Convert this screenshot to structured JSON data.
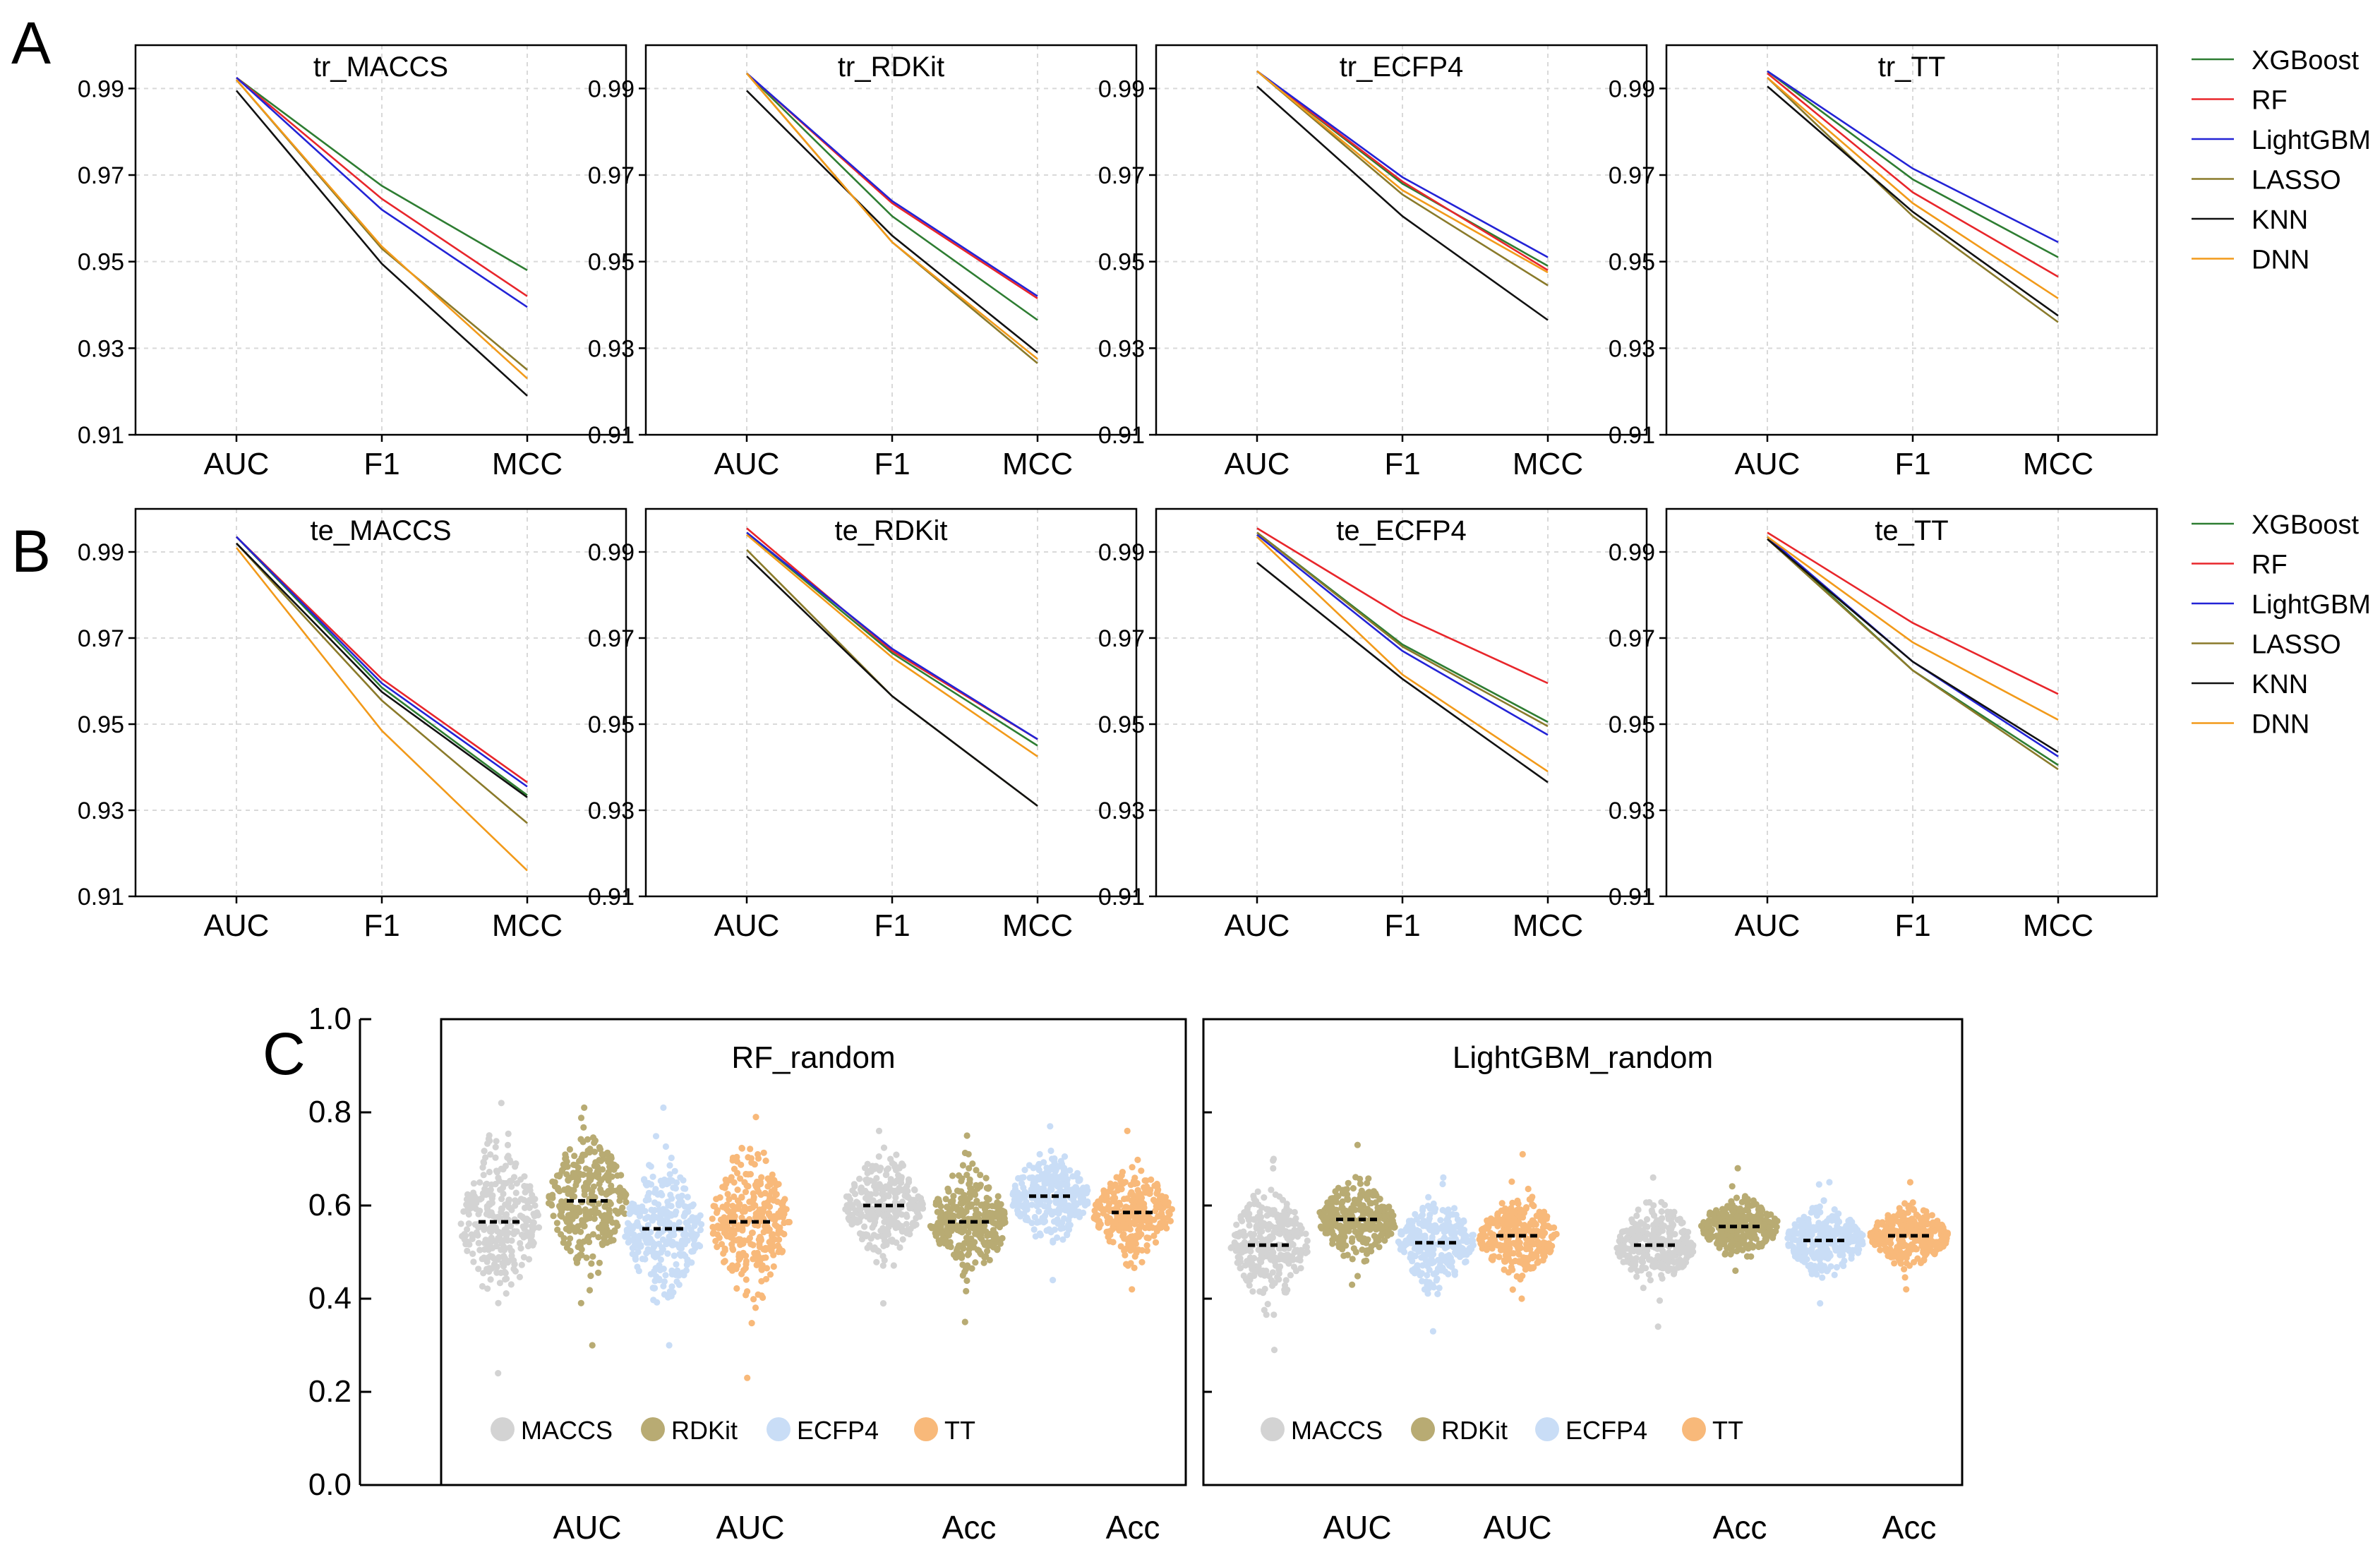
{
  "panel_letters": [
    "A",
    "B",
    "C"
  ],
  "colors": {
    "XGBoost": "#2e7d32",
    "RF": "#e8262b",
    "LightGBM": "#2323d6",
    "LASSO": "#8a7a2a",
    "KNN": "#111111",
    "DNN": "#f29a1a",
    "MACCS": "#d3d3d3",
    "RDKit": "#b8ab73",
    "ECFP4": "#c9ddf6",
    "TT": "#f8b97a"
  },
  "line_legend": [
    "XGBoost",
    "RF",
    "LightGBM",
    "LASSO",
    "KNN",
    "DNN"
  ],
  "chart_data": [
    {
      "type": "line",
      "row": "A",
      "title": "tr_MACCS",
      "categories": [
        "AUC",
        "F1",
        "MCC"
      ],
      "yticks": [
        "0.99",
        "0.97",
        "0.95",
        "0.93",
        "0.91"
      ],
      "ylim": [
        0.91,
        1.0
      ],
      "series": [
        {
          "name": "XGBoost",
          "values": [
            0.9925,
            0.9675,
            0.948
          ]
        },
        {
          "name": "RF",
          "values": [
            0.9925,
            0.9645,
            0.942
          ]
        },
        {
          "name": "LightGBM",
          "values": [
            0.9925,
            0.962,
            0.9395
          ]
        },
        {
          "name": "LASSO",
          "values": [
            0.992,
            0.953,
            0.925
          ]
        },
        {
          "name": "KNN",
          "values": [
            0.9895,
            0.9495,
            0.919
          ]
        },
        {
          "name": "DNN",
          "values": [
            0.992,
            0.9535,
            0.923
          ]
        }
      ]
    },
    {
      "type": "line",
      "row": "A",
      "title": "tr_RDKit",
      "categories": [
        "AUC",
        "F1",
        "MCC"
      ],
      "yticks": [
        "0.99",
        "0.97",
        "0.95",
        "0.93",
        "0.91"
      ],
      "ylim": [
        0.91,
        1.0
      ],
      "series": [
        {
          "name": "XGBoost",
          "values": [
            0.9935,
            0.9605,
            0.9365
          ]
        },
        {
          "name": "RF",
          "values": [
            0.9935,
            0.9635,
            0.9415
          ]
        },
        {
          "name": "LightGBM",
          "values": [
            0.9935,
            0.964,
            0.942
          ]
        },
        {
          "name": "LASSO",
          "values": [
            0.9935,
            0.9545,
            0.9265
          ]
        },
        {
          "name": "KNN",
          "values": [
            0.9895,
            0.956,
            0.929
          ]
        },
        {
          "name": "DNN",
          "values": [
            0.9935,
            0.9545,
            0.9275
          ]
        }
      ]
    },
    {
      "type": "line",
      "row": "A",
      "title": "tr_ECFP4",
      "categories": [
        "AUC",
        "F1",
        "MCC"
      ],
      "yticks": [
        "0.99",
        "0.97",
        "0.95",
        "0.93",
        "0.91"
      ],
      "ylim": [
        0.91,
        1.0
      ],
      "series": [
        {
          "name": "XGBoost",
          "values": [
            0.994,
            0.968,
            0.949
          ]
        },
        {
          "name": "RF",
          "values": [
            0.994,
            0.9685,
            0.948
          ]
        },
        {
          "name": "LightGBM",
          "values": [
            0.994,
            0.9695,
            0.951
          ]
        },
        {
          "name": "LASSO",
          "values": [
            0.994,
            0.9655,
            0.9445
          ]
        },
        {
          "name": "KNN",
          "values": [
            0.9905,
            0.9605,
            0.9365
          ]
        },
        {
          "name": "DNN",
          "values": [
            0.994,
            0.9665,
            0.9475
          ]
        }
      ]
    },
    {
      "type": "line",
      "row": "A",
      "title": "tr_TT",
      "categories": [
        "AUC",
        "F1",
        "MCC"
      ],
      "yticks": [
        "0.99",
        "0.97",
        "0.95",
        "0.93",
        "0.91"
      ],
      "ylim": [
        0.91,
        1.0
      ],
      "series": [
        {
          "name": "XGBoost",
          "values": [
            0.994,
            0.969,
            0.951
          ]
        },
        {
          "name": "RF",
          "values": [
            0.9935,
            0.966,
            0.9465
          ]
        },
        {
          "name": "LightGBM",
          "values": [
            0.994,
            0.9715,
            0.9545
          ]
        },
        {
          "name": "LASSO",
          "values": [
            0.9925,
            0.9605,
            0.936
          ]
        },
        {
          "name": "KNN",
          "values": [
            0.9905,
            0.9615,
            0.9375
          ]
        },
        {
          "name": "DNN",
          "values": [
            0.9925,
            0.9635,
            0.9415
          ]
        }
      ]
    },
    {
      "type": "line",
      "row": "B",
      "title": "te_MACCS",
      "categories": [
        "AUC",
        "F1",
        "MCC"
      ],
      "yticks": [
        "0.99",
        "0.97",
        "0.95",
        "0.93",
        "0.91"
      ],
      "ylim": [
        0.91,
        1.0
      ],
      "series": [
        {
          "name": "XGBoost",
          "values": [
            0.9935,
            0.9585,
            0.9335
          ]
        },
        {
          "name": "RF",
          "values": [
            0.9935,
            0.9605,
            0.9365
          ]
        },
        {
          "name": "LightGBM",
          "values": [
            0.9935,
            0.9595,
            0.9355
          ]
        },
        {
          "name": "LASSO",
          "values": [
            0.992,
            0.9555,
            0.927
          ]
        },
        {
          "name": "KNN",
          "values": [
            0.992,
            0.9575,
            0.933
          ]
        },
        {
          "name": "DNN",
          "values": [
            0.991,
            0.9485,
            0.916
          ]
        }
      ]
    },
    {
      "type": "line",
      "row": "B",
      "title": "te_RDKit",
      "categories": [
        "AUC",
        "F1",
        "MCC"
      ],
      "yticks": [
        "0.99",
        "0.97",
        "0.95",
        "0.93",
        "0.91"
      ],
      "ylim": [
        0.91,
        1.0
      ],
      "series": [
        {
          "name": "XGBoost",
          "values": [
            0.9945,
            0.9665,
            0.945
          ]
        },
        {
          "name": "RF",
          "values": [
            0.9955,
            0.967,
            0.9465
          ]
        },
        {
          "name": "LightGBM",
          "values": [
            0.9945,
            0.9675,
            0.9465
          ]
        },
        {
          "name": "LASSO",
          "values": [
            0.9905,
            0.9565,
            0.931
          ]
        },
        {
          "name": "KNN",
          "values": [
            0.989,
            0.9565,
            0.931
          ]
        },
        {
          "name": "DNN",
          "values": [
            0.994,
            0.9655,
            0.9425
          ]
        }
      ]
    },
    {
      "type": "line",
      "row": "B",
      "title": "te_ECFP4",
      "categories": [
        "AUC",
        "F1",
        "MCC"
      ],
      "yticks": [
        "0.99",
        "0.97",
        "0.95",
        "0.93",
        "0.91"
      ],
      "ylim": [
        0.91,
        1.0
      ],
      "series": [
        {
          "name": "XGBoost",
          "values": [
            0.9945,
            0.9685,
            0.9505
          ]
        },
        {
          "name": "RF",
          "values": [
            0.9955,
            0.975,
            0.9595
          ]
        },
        {
          "name": "LightGBM",
          "values": [
            0.994,
            0.967,
            0.9475
          ]
        },
        {
          "name": "LASSO",
          "values": [
            0.9945,
            0.968,
            0.9495
          ]
        },
        {
          "name": "KNN",
          "values": [
            0.9875,
            0.9605,
            0.9365
          ]
        },
        {
          "name": "DNN",
          "values": [
            0.9935,
            0.9615,
            0.939
          ]
        }
      ]
    },
    {
      "type": "line",
      "row": "B",
      "title": "te_TT",
      "categories": [
        "AUC",
        "F1",
        "MCC"
      ],
      "yticks": [
        "0.99",
        "0.97",
        "0.95",
        "0.93",
        "0.91"
      ],
      "ylim": [
        0.91,
        1.0
      ],
      "series": [
        {
          "name": "XGBoost",
          "values": [
            0.9935,
            0.9625,
            0.9405
          ]
        },
        {
          "name": "RF",
          "values": [
            0.9945,
            0.9735,
            0.957
          ]
        },
        {
          "name": "LightGBM",
          "values": [
            0.9935,
            0.9645,
            0.9425
          ]
        },
        {
          "name": "LASSO",
          "values": [
            0.993,
            0.9625,
            0.9395
          ]
        },
        {
          "name": "KNN",
          "values": [
            0.993,
            0.9645,
            0.9435
          ]
        },
        {
          "name": "DNN",
          "values": [
            0.9935,
            0.969,
            0.951
          ]
        }
      ]
    },
    {
      "type": "scatter",
      "row": "C",
      "title": "RF_random",
      "yticks": [
        "1.0",
        "0.8",
        "0.6",
        "0.4",
        "0.2",
        "0.0"
      ],
      "ylim": [
        0.0,
        1.0
      ],
      "xlabels": [
        "AUC",
        "AUC",
        "Acc",
        "Acc"
      ],
      "legend": [
        "MACCS",
        "RDKit",
        "ECFP4",
        "TT"
      ],
      "groups": [
        {
          "feature": "MACCS",
          "metric": "AUC",
          "median": 0.565,
          "min": 0.24,
          "max": 0.82
        },
        {
          "feature": "RDKit",
          "metric": "AUC",
          "median": 0.61,
          "min": 0.3,
          "max": 0.81
        },
        {
          "feature": "ECFP4",
          "metric": "AUC",
          "median": 0.55,
          "min": 0.3,
          "max": 0.81
        },
        {
          "feature": "TT",
          "metric": "AUC",
          "median": 0.565,
          "min": 0.23,
          "max": 0.79
        },
        {
          "feature": "MACCS",
          "metric": "Acc",
          "median": 0.6,
          "min": 0.39,
          "max": 0.76
        },
        {
          "feature": "RDKit",
          "metric": "Acc",
          "median": 0.565,
          "min": 0.35,
          "max": 0.75
        },
        {
          "feature": "ECFP4",
          "metric": "Acc",
          "median": 0.62,
          "min": 0.44,
          "max": 0.77
        },
        {
          "feature": "TT",
          "metric": "Acc",
          "median": 0.585,
          "min": 0.42,
          "max": 0.76
        }
      ]
    },
    {
      "type": "scatter",
      "row": "C",
      "title": "LightGBM_random",
      "yticks": [
        "1.0",
        "0.8",
        "0.6",
        "0.4",
        "0.2",
        "0.0"
      ],
      "ylim": [
        0.0,
        1.0
      ],
      "xlabels": [
        "AUC",
        "AUC",
        "Acc",
        "Acc"
      ],
      "legend": [
        "MACCS",
        "RDKit",
        "ECFP4",
        "TT"
      ],
      "groups": [
        {
          "feature": "MACCS",
          "metric": "AUC",
          "median": 0.515,
          "min": 0.29,
          "max": 0.7
        },
        {
          "feature": "RDKit",
          "metric": "AUC",
          "median": 0.57,
          "min": 0.43,
          "max": 0.73
        },
        {
          "feature": "ECFP4",
          "metric": "AUC",
          "median": 0.52,
          "min": 0.33,
          "max": 0.66
        },
        {
          "feature": "TT",
          "metric": "AUC",
          "median": 0.535,
          "min": 0.4,
          "max": 0.71
        },
        {
          "feature": "MACCS",
          "metric": "Acc",
          "median": 0.515,
          "min": 0.34,
          "max": 0.66
        },
        {
          "feature": "RDKit",
          "metric": "Acc",
          "median": 0.555,
          "min": 0.46,
          "max": 0.68
        },
        {
          "feature": "ECFP4",
          "metric": "Acc",
          "median": 0.525,
          "min": 0.39,
          "max": 0.65
        },
        {
          "feature": "TT",
          "metric": "Acc",
          "median": 0.535,
          "min": 0.42,
          "max": 0.65
        }
      ]
    }
  ]
}
